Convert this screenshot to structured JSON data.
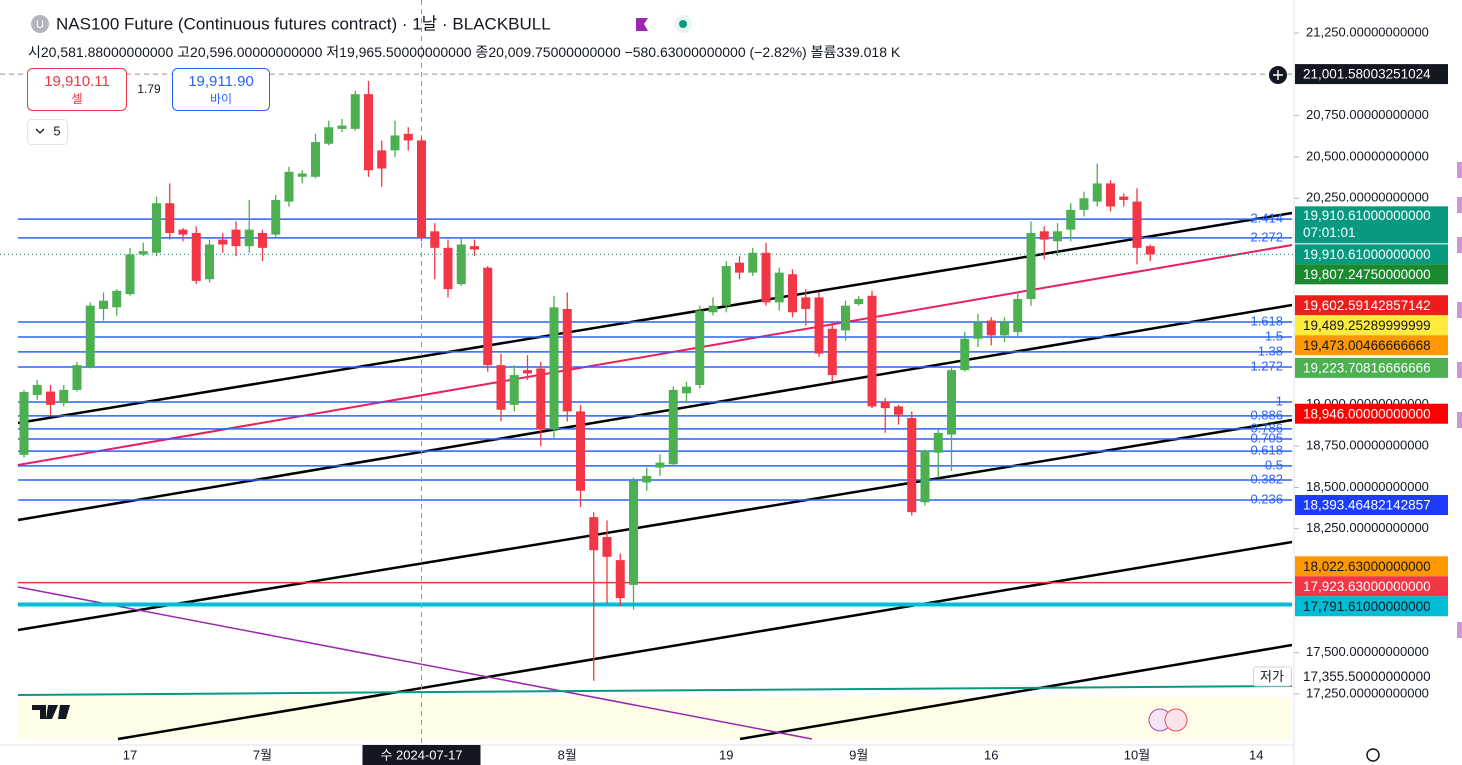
{
  "header": {
    "title": "NAS100 Future (Continuous futures contract) · 1날 · BLACKBULL",
    "icon": "U",
    "ohlc": [
      {
        "label": "시",
        "value": "20,581.88000000000"
      },
      {
        "label": "고",
        "value": "20,596.00000000000"
      },
      {
        "label": "저",
        "value": "19,965.50000000000"
      },
      {
        "label": "종",
        "value": "20,009.75000000000"
      }
    ],
    "change": "−580.63000000000 (−2.82%)",
    "volume_label": "볼륨",
    "volume": "339.018 K"
  },
  "trade": {
    "sell_price": "19,910.11",
    "sell_label": "셀",
    "spread": "1.79",
    "buy_price": "19,911.90",
    "buy_label": "바이",
    "collapse_count": "5"
  },
  "chart_data": {
    "type": "candlestick",
    "up_color": "#4caf50",
    "down_color": "#f23645",
    "x": [
      "2024-06-05",
      "2024-06-06",
      "2024-06-07",
      "2024-06-10",
      "2024-06-11",
      "2024-06-12",
      "2024-06-13",
      "2024-06-14",
      "2024-06-17",
      "2024-06-18",
      "2024-06-19",
      "2024-06-20",
      "2024-06-21",
      "2024-06-24",
      "2024-06-25",
      "2024-06-26",
      "2024-06-27",
      "2024-06-28",
      "2024-07-01",
      "2024-07-02",
      "2024-07-03",
      "2024-07-04",
      "2024-07-05",
      "2024-07-08",
      "2024-07-09",
      "2024-07-10",
      "2024-07-11",
      "2024-07-12",
      "2024-07-15",
      "2024-07-16",
      "2024-07-17",
      "2024-07-18",
      "2024-07-19",
      "2024-07-22",
      "2024-07-23",
      "2024-07-24",
      "2024-07-25",
      "2024-07-26",
      "2024-07-29",
      "2024-07-30",
      "2024-07-31",
      "2024-08-01",
      "2024-08-02",
      "2024-08-05",
      "2024-08-06",
      "2024-08-07",
      "2024-08-08",
      "2024-08-09",
      "2024-08-12",
      "2024-08-13",
      "2024-08-14",
      "2024-08-15",
      "2024-08-16",
      "2024-08-19",
      "2024-08-20",
      "2024-08-21",
      "2024-08-22",
      "2024-08-23",
      "2024-08-26",
      "2024-08-27",
      "2024-08-28",
      "2024-08-29",
      "2024-08-30",
      "2024-09-02",
      "2024-09-03",
      "2024-09-04",
      "2024-09-05",
      "2024-09-06",
      "2024-09-09",
      "2024-09-10",
      "2024-09-11",
      "2024-09-12",
      "2024-09-13",
      "2024-09-16",
      "2024-09-17",
      "2024-09-18",
      "2024-09-19",
      "2024-09-20",
      "2024-09-23",
      "2024-09-24",
      "2024-09-25",
      "2024-09-26",
      "2024-09-27",
      "2024-09-30",
      "2024-10-01",
      "2024-10-02"
    ],
    "open": [
      18697,
      19060,
      19080,
      19010,
      19090,
      19230,
      19580,
      19590,
      19670,
      19910,
      19920,
      20220,
      20060,
      20040,
      19760,
      20000,
      20060,
      19960,
      20040,
      20030,
      20230,
      20380,
      20380,
      20580,
      20670,
      20670,
      20880,
      20540,
      20540,
      20640,
      20600,
      20050,
      19950,
      19730,
      19960,
      19830,
      19240,
      19000,
      19210,
      19220,
      18850,
      19580,
      18960,
      18320,
      18200,
      18060,
      17910,
      18530,
      18620,
      18640,
      19070,
      19120,
      19560,
      19600,
      19860,
      19800,
      19920,
      19620,
      19790,
      19650,
      19650,
      19460,
      19450,
      19610,
      19660,
      19020,
      18990,
      18920,
      18410,
      18710,
      18820,
      19210,
      19400,
      19510,
      19420,
      19440,
      19640,
      20050,
      19990,
      20060,
      20180,
      20230,
      20340,
      20260,
      20230,
      19960
    ],
    "high": [
      19090,
      19150,
      19120,
      19120,
      19260,
      19620,
      19680,
      19700,
      19950,
      19980,
      20260,
      20340,
      20070,
      20080,
      20000,
      20040,
      20110,
      20240,
      20060,
      20270,
      20440,
      20420,
      20640,
      20720,
      20730,
      20900,
      20960,
      20600,
      20720,
      20680,
      20620,
      20100,
      20000,
      20010,
      20000,
      19840,
      19310,
      19240,
      19300,
      19260,
      19660,
      19680,
      19000,
      18350,
      18300,
      18100,
      18560,
      18620,
      18700,
      19110,
      19140,
      19600,
      19650,
      19870,
      19900,
      19950,
      19980,
      19830,
      19820,
      19700,
      19680,
      19500,
      19630,
      19660,
      19690,
      19040,
      19000,
      18960,
      18730,
      18850,
      19230,
      19440,
      19550,
      19530,
      19530,
      19680,
      20110,
      20080,
      20100,
      20220,
      20290,
      20460,
      20360,
      20280,
      20310,
      19970
    ],
    "low": [
      18680,
      19030,
      18930,
      18990,
      19080,
      19220,
      19510,
      19540,
      19660,
      19900,
      19900,
      20000,
      19990,
      19730,
      19740,
      19920,
      19900,
      19920,
      19870,
      20010,
      20200,
      20340,
      20370,
      20570,
      20650,
      20660,
      20380,
      20320,
      20500,
      20540,
      19990,
      19760,
      19650,
      19720,
      19900,
      19200,
      18900,
      18960,
      19150,
      18750,
      18800,
      18900,
      18380,
      17330,
      17800,
      17780,
      17760,
      18480,
      18570,
      18630,
      19010,
      19100,
      19540,
      19560,
      19760,
      19780,
      19600,
      19570,
      19530,
      19480,
      19290,
      19140,
      19390,
      19600,
      18980,
      18830,
      18880,
      18330,
      18390,
      18560,
      18600,
      19200,
      19350,
      19360,
      19380,
      19410,
      19600,
      19880,
      19900,
      19990,
      20140,
      20200,
      20170,
      20200,
      19850,
      19870
    ],
    "close": [
      19077,
      19120,
      19000,
      19090,
      19240,
      19600,
      19630,
      19690,
      19910,
      19930,
      20220,
      20040,
      20030,
      19750,
      19970,
      19970,
      19960,
      20060,
      19950,
      20240,
      20410,
      20400,
      20590,
      20680,
      20690,
      20880,
      20420,
      20430,
      20630,
      20600,
      20010,
      19950,
      19700,
      19970,
      19940,
      19240,
      18970,
      19180,
      19190,
      18850,
      19590,
      18960,
      18480,
      18120,
      18080,
      17830,
      18540,
      18570,
      18650,
      19090,
      19110,
      19570,
      19600,
      19840,
      19800,
      19920,
      19620,
      19800,
      19560,
      19580,
      19310,
      19180,
      19600,
      19640,
      18990,
      18980,
      18940,
      18350,
      18720,
      18830,
      19210,
      19400,
      19500,
      19420,
      19500,
      19640,
      20040,
      20000,
      20050,
      20180,
      20250,
      20340,
      20200,
      20240,
      19950,
      19910
    ],
    "ylim": [
      16941,
      21450
    ],
    "yticks": [
      {
        "value": 21250,
        "label": "21,250.00000000000"
      },
      {
        "value": 20750,
        "label": "20,750.00000000000"
      },
      {
        "value": 20500,
        "label": "20,500.00000000000"
      },
      {
        "value": 20250,
        "label": "20,250.00000000000"
      },
      {
        "value": 19000,
        "label": "19,000.00000000000"
      },
      {
        "value": 18750,
        "label": "18,750.00000000000"
      },
      {
        "value": 18500,
        "label": "18,500.00000000000"
      },
      {
        "value": 18250,
        "label": "18,250.00000000000"
      },
      {
        "value": 17500,
        "label": "17,500.00000000000"
      },
      {
        "value": 17250,
        "label": "17,250.00000000000"
      }
    ],
    "xticks": [
      {
        "value": "2024-06-17",
        "label": "17"
      },
      {
        "value": "2024-07-01",
        "label": "7월"
      },
      {
        "value": "2024-08-01",
        "label": "8월"
      },
      {
        "value": "2024-08-19",
        "label": "19"
      },
      {
        "value": "2024-09-02",
        "label": "9월"
      },
      {
        "value": "2024-09-16",
        "label": "16"
      },
      {
        "value": "2024-10-01",
        "label": "10월"
      },
      {
        "value": "2024-10-14",
        "label": "14"
      }
    ],
    "crosshair": {
      "x": {
        "value": "2024-07-17",
        "label": "수 2024-07-17"
      },
      "y": {
        "value": 21001.58003251024,
        "label": "21,001.58003251024"
      }
    },
    "fib_levels": {
      "color": "#2962ff",
      "ratios": [
        2.414,
        2.272,
        1.618,
        1.5,
        1.38,
        1.272,
        1,
        0.886,
        0.786,
        0.705,
        0.618,
        0.5,
        0.382,
        0.236
      ],
      "prices": [
        20124,
        20010,
        19501,
        19410,
        19320,
        19229,
        19017,
        18933,
        18854,
        18793,
        18720,
        18630,
        18545,
        18424
      ]
    },
    "hlines": [
      {
        "value": 17923.63,
        "color": "#e53935",
        "style": "solid"
      },
      {
        "value": 17791.61,
        "color": "#00bcd4",
        "style": "thick"
      },
      {
        "value": 19910.61,
        "color": "#089981",
        "style": "dotted"
      }
    ],
    "last_price": {
      "value": 19910.61,
      "label": "19,910.61000000000",
      "countdown": "07:01:01",
      "color": "#089981"
    },
    "price_labels": [
      {
        "value": 19807.2475,
        "label": "19,807.24750000000",
        "bg": "#1b8a2e",
        "fg": "#ffffff"
      },
      {
        "value": 19602.59142857142,
        "label": "19,602.59142857142",
        "bg": "#f01c1c",
        "fg": "#ffffff"
      },
      {
        "value": 19489.25289999999,
        "label": "19,489.25289999999",
        "bg": "#ffeb3b",
        "fg": "#131722"
      },
      {
        "value": 19473.00466666668,
        "label": "19,473.00466666668",
        "bg": "#ff9800",
        "fg": "#131722"
      },
      {
        "value": 19223.70816666666,
        "label": "19,223.70816666666",
        "bg": "#4caf50",
        "fg": "#ffffff"
      },
      {
        "value": 18946,
        "label": "18,946.00000000000",
        "bg": "#ff0000",
        "fg": "#ffffff"
      },
      {
        "value": 18393.46482142857,
        "label": "18,393.46482142857",
        "bg": "#1e3cff",
        "fg": "#ffffff"
      },
      {
        "value": 18022.63,
        "label": "18,022.63000000000",
        "bg": "#ff9800",
        "fg": "#131722"
      },
      {
        "value": 17923.63,
        "label": "17,923.63000000000",
        "bg": "#f23645",
        "fg": "#ffffff"
      },
      {
        "value": 17791.61,
        "label": "17,791.61000000000",
        "bg": "#00bcd4",
        "fg": "#131722"
      },
      {
        "value": 17355.5,
        "label": "17,355.50000000000",
        "bg": "#ffffff",
        "fg": "#131722",
        "tag": "저가"
      }
    ]
  }
}
